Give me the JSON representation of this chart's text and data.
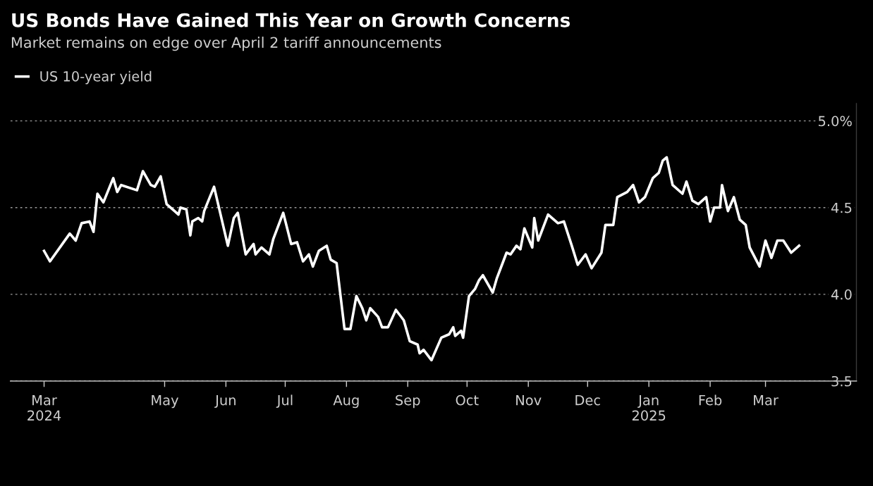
{
  "chart_data": {
    "type": "line",
    "title": "US Bonds Have Gained This Year on Growth Concerns",
    "subtitle": "Market remains on edge over April 2 tariff announcements",
    "x": [
      "2024-03-01",
      "2024-03-04",
      "2024-03-14",
      "2024-03-17",
      "2024-03-20",
      "2024-03-24",
      "2024-03-26",
      "2024-03-28",
      "2024-03-31",
      "2024-04-05",
      "2024-04-07",
      "2024-04-09",
      "2024-04-17",
      "2024-04-20",
      "2024-04-24",
      "2024-04-26",
      "2024-04-29",
      "2024-05-02",
      "2024-05-06",
      "2024-05-08",
      "2024-05-09",
      "2024-05-12",
      "2024-05-14",
      "2024-05-15",
      "2024-05-18",
      "2024-05-20",
      "2024-05-21",
      "2024-05-26",
      "2024-06-02",
      "2024-06-05",
      "2024-06-07",
      "2024-06-11",
      "2024-06-15",
      "2024-06-16",
      "2024-06-19",
      "2024-06-23",
      "2024-06-25",
      "2024-06-30",
      "2024-07-04",
      "2024-07-07",
      "2024-07-10",
      "2024-07-13",
      "2024-07-15",
      "2024-07-18",
      "2024-07-22",
      "2024-07-24",
      "2024-07-27",
      "2024-07-31",
      "2024-08-03",
      "2024-08-06",
      "2024-08-09",
      "2024-08-11",
      "2024-08-13",
      "2024-08-17",
      "2024-08-19",
      "2024-08-22",
      "2024-08-26",
      "2024-08-30",
      "2024-09-02",
      "2024-09-06",
      "2024-09-07",
      "2024-09-09",
      "2024-09-13",
      "2024-09-18",
      "2024-09-22",
      "2024-09-24",
      "2024-09-25",
      "2024-09-28",
      "2024-09-29",
      "2024-10-02",
      "2024-10-05",
      "2024-10-07",
      "2024-10-09",
      "2024-10-14",
      "2024-10-16",
      "2024-10-21",
      "2024-10-23",
      "2024-10-26",
      "2024-10-28",
      "2024-10-30",
      "2024-11-03",
      "2024-11-04",
      "2024-11-06",
      "2024-11-11",
      "2024-11-16",
      "2024-11-19",
      "2024-11-23",
      "2024-11-26",
      "2024-11-30",
      "2024-12-03",
      "2024-12-08",
      "2024-12-10",
      "2024-12-14",
      "2024-12-16",
      "2024-12-21",
      "2024-12-24",
      "2024-12-27",
      "2024-12-30",
      "2025-01-03",
      "2025-01-06",
      "2025-01-08",
      "2025-01-10",
      "2025-01-13",
      "2025-01-18",
      "2025-01-20",
      "2025-01-23",
      "2025-01-26",
      "2025-01-30",
      "2025-02-01",
      "2025-02-03",
      "2025-02-06",
      "2025-02-07",
      "2025-02-10",
      "2025-02-13",
      "2025-02-16",
      "2025-02-19",
      "2025-02-21",
      "2025-02-26",
      "2025-03-01",
      "2025-03-04",
      "2025-03-07",
      "2025-03-10",
      "2025-03-14",
      "2025-03-18"
    ],
    "series": [
      {
        "name": "US 10-year yield",
        "color": "#ffffff",
        "values": [
          4.25,
          4.19,
          4.35,
          4.31,
          4.41,
          4.42,
          4.36,
          4.58,
          4.53,
          4.67,
          4.59,
          4.63,
          4.6,
          4.71,
          4.63,
          4.62,
          4.68,
          4.52,
          4.48,
          4.46,
          4.5,
          4.49,
          4.34,
          4.42,
          4.44,
          4.42,
          4.48,
          4.62,
          4.28,
          4.44,
          4.47,
          4.23,
          4.29,
          4.23,
          4.27,
          4.23,
          4.32,
          4.47,
          4.29,
          4.3,
          4.19,
          4.23,
          4.16,
          4.25,
          4.28,
          4.2,
          4.18,
          3.8,
          3.8,
          3.99,
          3.92,
          3.85,
          3.92,
          3.87,
          3.81,
          3.81,
          3.91,
          3.85,
          3.73,
          3.71,
          3.66,
          3.68,
          3.62,
          3.75,
          3.77,
          3.81,
          3.76,
          3.79,
          3.75,
          3.99,
          4.03,
          4.08,
          4.11,
          4.01,
          4.09,
          4.24,
          4.23,
          4.28,
          4.26,
          4.38,
          4.27,
          4.44,
          4.31,
          4.46,
          4.41,
          4.42,
          4.28,
          4.17,
          4.23,
          4.15,
          4.24,
          4.4,
          4.4,
          4.56,
          4.59,
          4.63,
          4.53,
          4.56,
          4.67,
          4.7,
          4.77,
          4.79,
          4.63,
          4.58,
          4.65,
          4.54,
          4.52,
          4.56,
          4.42,
          4.5,
          4.5,
          4.63,
          4.48,
          4.56,
          4.43,
          4.4,
          4.27,
          4.16,
          4.31,
          4.21,
          4.31,
          4.31,
          4.24,
          4.28
        ]
      }
    ],
    "xlim": [
      "2024-02-13",
      "2025-04-16"
    ],
    "xticks": [
      {
        "value": "2024-03-01",
        "label": "Mar\n2024"
      },
      {
        "value": "2024-05-01",
        "label": "May"
      },
      {
        "value": "2024-06-01",
        "label": "Jun"
      },
      {
        "value": "2024-07-01",
        "label": "Jul"
      },
      {
        "value": "2024-08-01",
        "label": "Aug"
      },
      {
        "value": "2024-09-01",
        "label": "Sep"
      },
      {
        "value": "2024-10-01",
        "label": "Oct"
      },
      {
        "value": "2024-11-01",
        "label": "Nov"
      },
      {
        "value": "2024-12-01",
        "label": "Dec"
      },
      {
        "value": "2025-01-01",
        "label": "Jan\n2025"
      },
      {
        "value": "2025-02-01",
        "label": "Feb"
      },
      {
        "value": "2025-03-01",
        "label": "Mar"
      }
    ],
    "ylim": [
      3.5,
      5.1
    ],
    "yticks": [
      3.5,
      {
        "value": 4.0,
        "label": "4.0"
      },
      4.5,
      {
        "value": 5.0,
        "label": "5.0%"
      }
    ],
    "grid": "y",
    "legend": "top left",
    "line_style": "solid",
    "marker": "none"
  }
}
